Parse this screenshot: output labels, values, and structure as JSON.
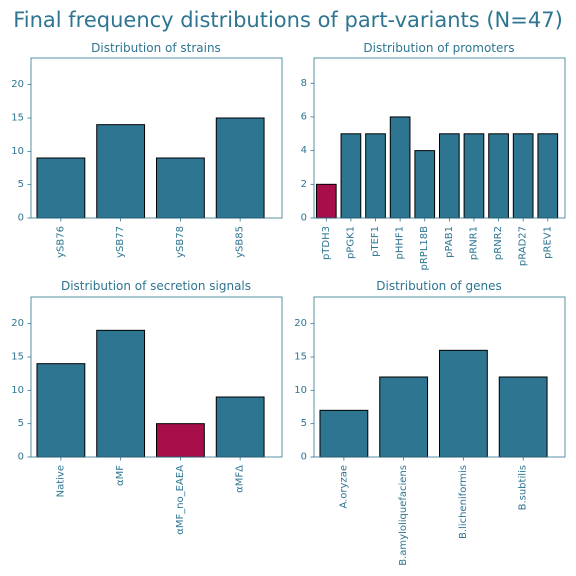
{
  "figure_title": "Final frequency distributions of part-variants (N=47)",
  "colors": {
    "bar": "#2e7591",
    "highlight": "#a80e4a",
    "text": "#2e7591",
    "spine": "#2e7591",
    "edge": "#000000"
  },
  "chart_data": [
    {
      "type": "bar",
      "title": "Distribution of strains",
      "categories": [
        "ySB76",
        "ySB77",
        "ySB78",
        "ySB85"
      ],
      "values": [
        9,
        14,
        9,
        15
      ],
      "highlight": [],
      "ylim": [
        0,
        24
      ],
      "yticks": [
        0,
        5,
        10,
        15,
        20
      ],
      "grid": false
    },
    {
      "type": "bar",
      "title": "Distribution of promoters",
      "categories": [
        "pTDH3",
        "pPGK1",
        "pTEF1",
        "pHHF1",
        "pRPL18B",
        "pPAB1",
        "pRNR1",
        "pRNR2",
        "pRAD27",
        "pREV1"
      ],
      "values": [
        2,
        5,
        5,
        6,
        4,
        5,
        5,
        5,
        5,
        5
      ],
      "highlight": [
        0
      ],
      "ylim": [
        0,
        9.5
      ],
      "yticks": [
        0,
        2,
        4,
        6,
        8
      ],
      "grid": false
    },
    {
      "type": "bar",
      "title": "Distribution of secretion signals",
      "categories": [
        "Native",
        "αMF",
        "αMF_no_EAEA",
        "αMFΔ"
      ],
      "values": [
        14,
        19,
        5,
        9
      ],
      "highlight": [
        2
      ],
      "ylim": [
        0,
        24
      ],
      "yticks": [
        0,
        5,
        10,
        15,
        20
      ],
      "grid": false
    },
    {
      "type": "bar",
      "title": "Distribution of genes",
      "categories": [
        "A.oryzae",
        "B.amyloliquefaciens",
        "B.licheniformis",
        "B.subtilis"
      ],
      "values": [
        7,
        12,
        16,
        12
      ],
      "highlight": [],
      "ylim": [
        0,
        24
      ],
      "yticks": [
        0,
        5,
        10,
        15,
        20
      ],
      "grid": false
    }
  ]
}
